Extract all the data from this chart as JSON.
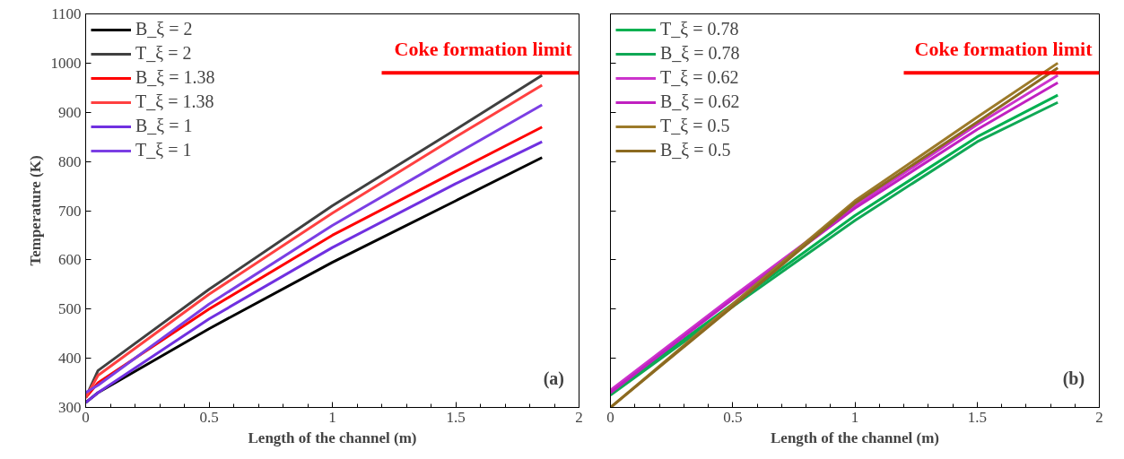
{
  "chart_data": [
    {
      "type": "line",
      "xlabel": "Length of the channel (m)",
      "ylabel": "Temperature (K)",
      "xlim": [
        0,
        2
      ],
      "ylim": [
        300,
        1100
      ],
      "xticks": [
        0,
        0.5,
        1,
        1.5,
        2
      ],
      "yticks": [
        300,
        400,
        500,
        600,
        700,
        800,
        900,
        1000,
        1100
      ],
      "legend": "top left",
      "grid": false,
      "line_style": "solid",
      "marker": "none",
      "annotations": [
        {
          "text": "(a)"
        }
      ],
      "ref_lines": [
        {
          "axis": "y",
          "value": 980,
          "label": "Coke formation limit",
          "color": "#ff0000"
        }
      ],
      "series": [
        {
          "name": "B_ξ = 2",
          "color": "#000000",
          "x": [
            0,
            0.05,
            0.5,
            1,
            1.5,
            1.85
          ],
          "values": [
            310,
            330,
            460,
            595,
            720,
            808
          ]
        },
        {
          "name": "T_ξ = 2",
          "color": "#404040",
          "x": [
            0,
            0.05,
            0.5,
            1,
            1.5,
            1.85
          ],
          "values": [
            320,
            375,
            540,
            710,
            865,
            975
          ]
        },
        {
          "name": "B_ξ = 1.38",
          "color": "#ff0000",
          "x": [
            0,
            0.05,
            0.5,
            1,
            1.5,
            1.85
          ],
          "values": [
            320,
            350,
            500,
            650,
            780,
            870
          ]
        },
        {
          "name": "T_ξ = 1.38",
          "color": "#ff4040",
          "x": [
            0,
            0.05,
            0.5,
            1,
            1.5,
            1.85
          ],
          "values": [
            320,
            365,
            530,
            695,
            850,
            955
          ]
        },
        {
          "name": "B_ξ = 1",
          "color": "#7030e0",
          "x": [
            0,
            0.05,
            0.5,
            1,
            1.5,
            1.85
          ],
          "values": [
            310,
            330,
            480,
            625,
            755,
            840
          ]
        },
        {
          "name": "T_ξ = 1",
          "color": "#7b3fe4",
          "x": [
            0,
            0.05,
            0.5,
            1,
            1.5,
            1.85
          ],
          "values": [
            330,
            345,
            510,
            670,
            815,
            915
          ]
        }
      ]
    },
    {
      "type": "line",
      "xlabel": "Length of the channel (m)",
      "xlim": [
        0,
        2
      ],
      "ylim": [
        300,
        1100
      ],
      "xticks": [
        0,
        0.5,
        1,
        1.5,
        2
      ],
      "yticks": [
        {
          "value": 300,
          "label": null
        },
        {
          "value": 400,
          "label": null
        },
        {
          "value": 500,
          "label": null
        },
        {
          "value": 600,
          "label": null
        },
        {
          "value": 700,
          "label": null
        },
        {
          "value": 800,
          "label": null
        },
        {
          "value": 900,
          "label": null
        },
        {
          "value": 1000,
          "label": null
        },
        {
          "value": 1100,
          "label": null
        }
      ],
      "tick_labels": "x",
      "legend": "top left",
      "grid": false,
      "line_style": "solid",
      "marker": "none",
      "annotations": [
        {
          "text": "(b)"
        }
      ],
      "ref_lines": [
        {
          "axis": "y",
          "value": 980,
          "label": "Coke formation limit",
          "color": "#ff0000"
        }
      ],
      "series": [
        {
          "name": "T_ξ = 0.78",
          "color": "#00b050",
          "x": [
            0,
            0.5,
            1,
            1.5,
            1.83
          ],
          "values": [
            330,
            510,
            690,
            850,
            935
          ]
        },
        {
          "name": "B_ξ = 0.78",
          "color": "#10a855",
          "x": [
            0,
            0.5,
            1,
            1.5,
            1.83
          ],
          "values": [
            325,
            505,
            680,
            840,
            920
          ]
        },
        {
          "name": "T_ξ = 0.62",
          "color": "#cc33cc",
          "x": [
            0,
            0.5,
            1,
            1.5,
            1.83
          ],
          "values": [
            335,
            525,
            710,
            875,
            975
          ]
        },
        {
          "name": "B_ξ = 0.62",
          "color": "#c020c0",
          "x": [
            0,
            0.5,
            1,
            1.5,
            1.83
          ],
          "values": [
            330,
            520,
            705,
            865,
            960
          ]
        },
        {
          "name": "T_ξ = 0.5",
          "color": "#9c7a2a",
          "x": [
            0,
            0.5,
            1,
            1.5,
            1.83
          ],
          "values": [
            300,
            510,
            720,
            890,
            1000
          ]
        },
        {
          "name": "B_ξ = 0.5",
          "color": "#8c6a20",
          "x": [
            0,
            0.5,
            1,
            1.5,
            1.83
          ],
          "values": [
            300,
            505,
            715,
            880,
            990
          ]
        }
      ]
    }
  ]
}
